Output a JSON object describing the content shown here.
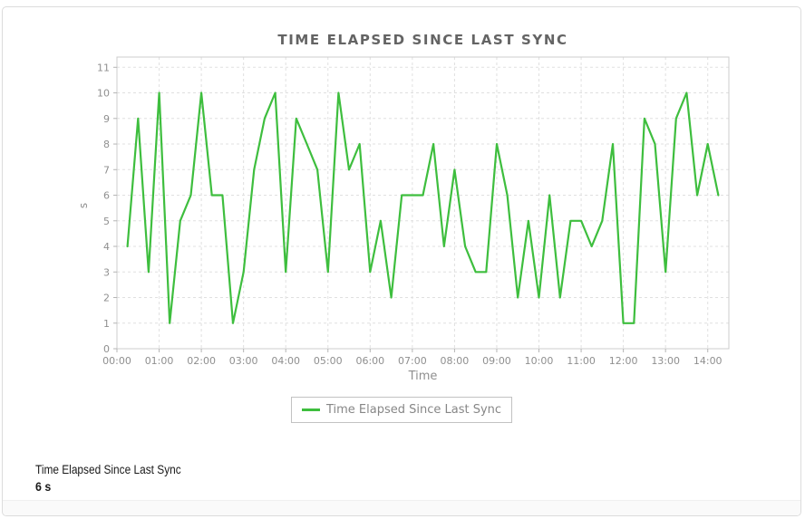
{
  "widget": {
    "footer": {
      "metric_label": "Time Elapsed Since Last Sync",
      "metric_value": "6 s"
    }
  },
  "colors": {
    "series_green": "#3ebe3e",
    "title_text": "#646464",
    "axis_text": "#8f8f8f",
    "grid_line": "#e0e0e0"
  },
  "chart_data": {
    "type": "line",
    "title": "TIME ELAPSED SINCE LAST SYNC",
    "xlabel": "Time",
    "ylabel": "s",
    "grid": "dashed",
    "legend_position": "bottom",
    "x_ticks": [
      "00:00",
      "01:00",
      "02:00",
      "03:00",
      "04:00",
      "05:00",
      "06:00",
      "07:00",
      "08:00",
      "09:00",
      "10:00",
      "11:00",
      "12:00",
      "13:00",
      "14:00"
    ],
    "y_ticks": [
      0,
      1,
      2,
      3,
      4,
      5,
      6,
      7,
      8,
      9,
      10,
      11
    ],
    "y_axis_max": 11.4,
    "x_range_minutes": [
      0,
      870
    ],
    "series": [
      {
        "name": "Time Elapsed Since Last Sync",
        "color": "#3ebe3e",
        "x": [
          "00:15",
          "00:30",
          "00:45",
          "01:00",
          "01:15",
          "01:30",
          "01:45",
          "02:00",
          "02:15",
          "02:30",
          "02:45",
          "03:00",
          "03:15",
          "03:30",
          "03:45",
          "04:00",
          "04:15",
          "04:30",
          "04:45",
          "05:00",
          "05:15",
          "05:30",
          "05:45",
          "06:00",
          "06:15",
          "06:30",
          "06:45",
          "07:00",
          "07:15",
          "07:30",
          "07:45",
          "08:00",
          "08:15",
          "08:30",
          "08:45",
          "09:00",
          "09:15",
          "09:30",
          "09:45",
          "10:00",
          "10:15",
          "10:30",
          "10:45",
          "11:00",
          "11:15",
          "11:30",
          "11:45",
          "12:00",
          "12:15",
          "12:30",
          "12:45",
          "13:00",
          "13:15",
          "13:30",
          "13:45",
          "14:00",
          "14:15"
        ],
        "values": [
          4,
          9,
          3,
          10,
          1,
          5,
          6,
          10,
          6,
          6,
          1,
          3,
          7,
          9,
          10,
          3,
          9,
          8,
          7,
          3,
          10,
          7,
          8,
          3,
          5,
          2,
          6,
          6,
          6,
          8,
          4,
          7,
          4,
          3,
          3,
          8,
          6,
          2,
          5,
          2,
          6,
          2,
          5,
          5,
          4,
          5,
          8,
          1,
          1,
          9,
          8,
          3,
          9,
          10,
          6,
          8,
          6
        ]
      }
    ]
  }
}
